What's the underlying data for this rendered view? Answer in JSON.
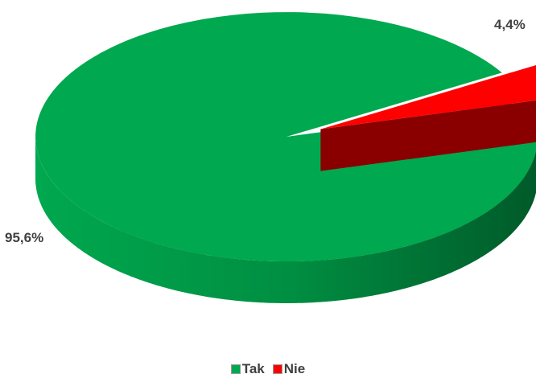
{
  "chart_data": {
    "type": "pie",
    "style": "3d",
    "categories": [
      "Tak",
      "Nie"
    ],
    "values": [
      95.6,
      4.4
    ],
    "data_labels": [
      "95,6%",
      "4,4%"
    ],
    "colors": [
      "#00a84f",
      "#ff0000"
    ],
    "exploded": [
      false,
      true
    ],
    "legend_position": "bottom",
    "title": ""
  },
  "legend": {
    "items": [
      {
        "label": "Tak",
        "color": "#00a84f"
      },
      {
        "label": "Nie",
        "color": "#ff0000"
      }
    ]
  }
}
